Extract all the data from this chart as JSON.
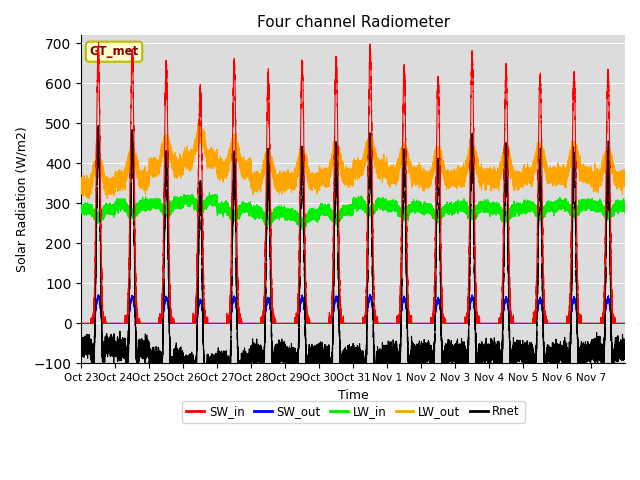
{
  "title": "Four channel Radiometer",
  "ylabel": "Solar Radiation (W/m2)",
  "xlabel": "Time",
  "ylim": [
    -100,
    720
  ],
  "yticks": [
    -100,
    0,
    100,
    200,
    300,
    400,
    500,
    600,
    700
  ],
  "bg_color": "#dcdcdc",
  "legend_label": "GT_met",
  "channels": [
    "SW_in",
    "SW_out",
    "LW_in",
    "LW_out",
    "Rnet"
  ],
  "colors": {
    "SW_in": "#ff0000",
    "SW_out": "#0000ff",
    "LW_in": "#00ee00",
    "LW_out": "#ffa500",
    "Rnet": "#000000"
  },
  "n_days": 16,
  "x_tick_labels": [
    "Oct 23",
    "Oct 24",
    "Oct 25",
    "Oct 26",
    "Oct 27",
    "Oct 28",
    "Oct 29",
    "Oct 30",
    "Oct 31",
    "Nov 1",
    "Nov 2",
    "Nov 3",
    "Nov 4",
    "Nov 5",
    "Nov 6",
    "Nov 7"
  ],
  "sw_in_peaks": [
    680,
    670,
    645,
    580,
    650,
    615,
    650,
    655,
    685,
    635,
    610,
    670,
    635,
    615,
    620,
    625
  ],
  "lw_in_base": [
    285,
    295,
    300,
    308,
    288,
    278,
    272,
    282,
    300,
    292,
    287,
    292,
    287,
    292,
    297,
    292
  ],
  "lw_out_base": [
    342,
    358,
    390,
    412,
    386,
    352,
    356,
    366,
    386,
    370,
    360,
    366,
    360,
    370,
    370,
    360
  ]
}
